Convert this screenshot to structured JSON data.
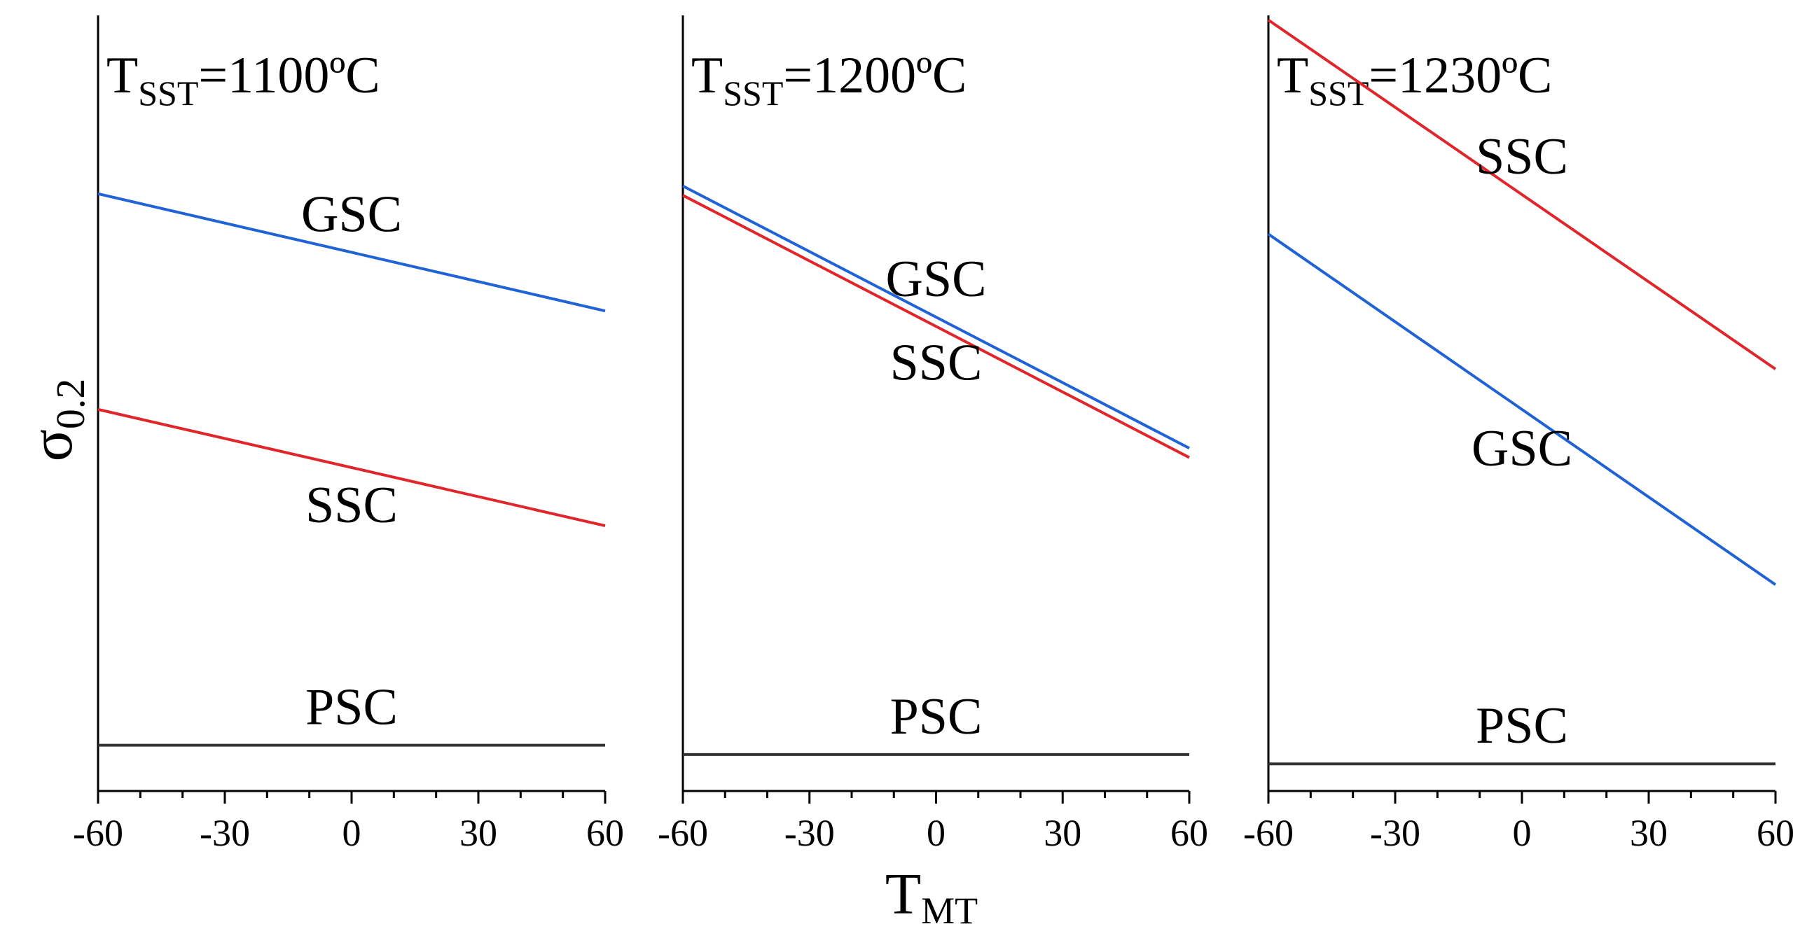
{
  "chart_data": {
    "type": "line",
    "y_axis": {
      "label_main": "σ",
      "label_sub": "0.2"
    },
    "x_axis": {
      "label_main": "T",
      "label_sub": "MT",
      "range": [
        -60,
        60
      ],
      "ticks": [
        "-60",
        "-30",
        "0",
        "30",
        "60"
      ]
    },
    "ylim": [
      0,
      100
    ],
    "colors": {
      "GSC": "#1f63d6",
      "SSC": "#e0262b",
      "PSC": "#333333"
    },
    "panels": [
      {
        "title": {
          "main": "T",
          "sub": "SST",
          "rest": "=1100ºC"
        },
        "series": [
          {
            "name": "GSC",
            "label": "GSC",
            "x": [
              -60,
              60
            ],
            "y": [
              77.0,
              61.9
            ]
          },
          {
            "name": "SSC",
            "label": "SSC",
            "x": [
              -60,
              60
            ],
            "y": [
              49.2,
              34.2
            ]
          },
          {
            "name": "PSC",
            "label": "PSC",
            "x": [
              -60,
              60
            ],
            "y": [
              5.9,
              5.9
            ]
          }
        ]
      },
      {
        "title": {
          "main": "T",
          "sub": "SST",
          "rest": "=1200ºC"
        },
        "series": [
          {
            "name": "GSC",
            "label": "GSC",
            "x": [
              -60,
              60
            ],
            "y": [
              78.0,
              44.2
            ]
          },
          {
            "name": "SSC",
            "label": "SSC",
            "x": [
              -60,
              60
            ],
            "y": [
              76.8,
              43.0
            ]
          },
          {
            "name": "PSC",
            "label": "PSC",
            "x": [
              -60,
              60
            ],
            "y": [
              4.7,
              4.7
            ]
          }
        ]
      },
      {
        "title": {
          "main": "T",
          "sub": "SST",
          "rest": "=1230ºC"
        },
        "series": [
          {
            "name": "SSC",
            "label": "SSC",
            "x": [
              -60,
              60
            ],
            "y": [
              99.4,
              54.4
            ]
          },
          {
            "name": "GSC",
            "label": "GSC",
            "x": [
              -60,
              60
            ],
            "y": [
              71.8,
              26.6
            ]
          },
          {
            "name": "PSC",
            "label": "PSC",
            "x": [
              -60,
              60
            ],
            "y": [
              3.5,
              3.5
            ]
          }
        ]
      }
    ]
  }
}
